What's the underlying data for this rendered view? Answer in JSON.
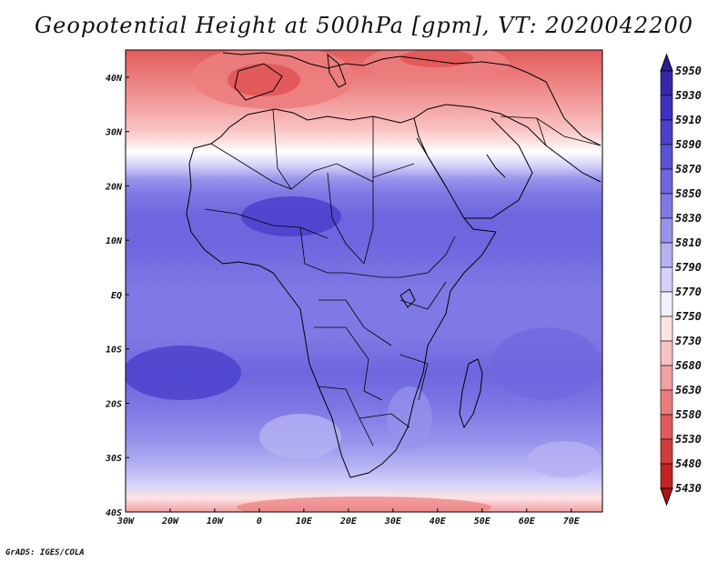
{
  "title": "Geopotential Height at 500hPa [gpm], VT: 2020042200",
  "footer": "GrADS: IGES/COLA",
  "map": {
    "lon_range": [
      -30,
      77
    ],
    "lat_range": [
      -40,
      45
    ],
    "lon_ticks": [
      "30W",
      "20W",
      "10W",
      "0",
      "10E",
      "20E",
      "30E",
      "40E",
      "50E",
      "60E",
      "70E"
    ],
    "lat_ticks": [
      "40N",
      "30N",
      "20N",
      "10N",
      "EQ",
      "10S",
      "20S",
      "30S",
      "40S"
    ]
  },
  "colorbar": {
    "levels": [
      "5950",
      "5930",
      "5910",
      "5890",
      "5870",
      "5850",
      "5830",
      "5810",
      "5790",
      "5770",
      "5750",
      "5730",
      "5680",
      "5630",
      "5580",
      "5530",
      "5480",
      "5430"
    ],
    "colors": [
      "#2b1e9a",
      "#3526ad",
      "#3c31bf",
      "#4a40cc",
      "#5a52d6",
      "#6d66de",
      "#7f79e5",
      "#9893ec",
      "#b5b2f3",
      "#d4d2f9",
      "#f1f0fd",
      "#fde3e3",
      "#f9c2c2",
      "#f3a0a0",
      "#ec7d7d",
      "#e25a5a",
      "#d33c3c",
      "#c42222",
      "#b51010"
    ]
  }
}
